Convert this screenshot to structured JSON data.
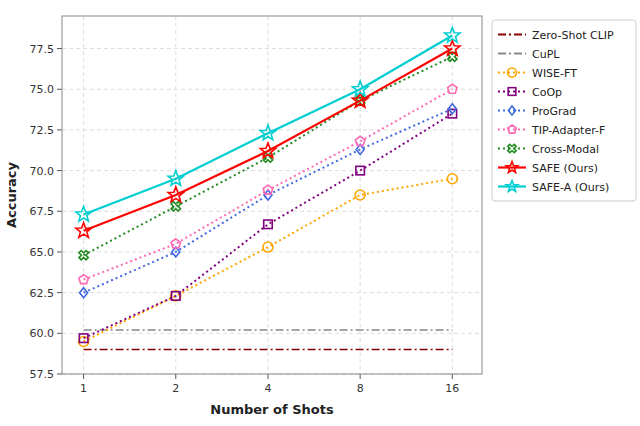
{
  "chart_data": {
    "type": "line",
    "x_label": "Number of Shots",
    "y_label": "Accuracy",
    "x": [
      1,
      2,
      4,
      8,
      16
    ],
    "series": [
      {
        "name": "Zero-Shot CLIP",
        "color": "#8B0000",
        "line_style": "dashdot",
        "values": [
          59.0,
          59.0,
          59.0,
          59.0,
          59.0
        ]
      },
      {
        "name": "CuPL",
        "color": "#888888",
        "line_style": "dashdot",
        "values": [
          60.2,
          60.2,
          60.2,
          60.2,
          60.2
        ]
      },
      {
        "name": "WISE-FT",
        "color": "#FFA500",
        "line_style": "dotted",
        "marker": "circle",
        "values": [
          59.5,
          62.3,
          65.3,
          68.5,
          69.5
        ]
      },
      {
        "name": "CoOp",
        "color": "#800080",
        "line_style": "dotted",
        "marker": "square",
        "values": [
          59.7,
          62.3,
          66.7,
          70.0,
          73.5
        ]
      },
      {
        "name": "ProGrad",
        "color": "#4169E1",
        "line_style": "dotted",
        "marker": "diamond",
        "values": [
          62.5,
          65.0,
          68.5,
          71.3,
          73.8
        ]
      },
      {
        "name": "TIP-Adapter-F",
        "color": "#FF69B4",
        "line_style": "dotted",
        "marker": "pentagon",
        "values": [
          63.3,
          65.5,
          68.8,
          71.8,
          75.0
        ]
      },
      {
        "name": "Cross-Modal",
        "color": "#228B22",
        "line_style": "dotted",
        "marker": "x",
        "values": [
          64.8,
          67.8,
          70.8,
          74.3,
          77.0
        ]
      },
      {
        "name": "SAFE (Ours)",
        "color": "#FF0000",
        "line_style": "solid",
        "marker": "star",
        "values": [
          66.3,
          68.5,
          71.2,
          74.3,
          77.5
        ]
      },
      {
        "name": "SAFE-A (Ours)",
        "color": "#00CED1",
        "line_style": "solid",
        "marker": "star",
        "values": [
          67.3,
          69.5,
          72.3,
          75.0,
          78.3
        ]
      }
    ],
    "log": "x",
    "xlim": [
      0.85,
      20
    ],
    "xticks": [
      1,
      2,
      4,
      8,
      16
    ],
    "ylim": [
      57.5,
      79.5
    ],
    "yticks": [
      57.5,
      {
        "value": 60.0,
        "label": "60.0"
      },
      62.5,
      {
        "value": 65.0,
        "label": "65.0"
      },
      67.5,
      {
        "value": 70.0,
        "label": "70.0"
      },
      72.5,
      {
        "value": 75.0,
        "label": "75.0"
      },
      77.5
    ],
    "grid": true,
    "legend": "right"
  }
}
